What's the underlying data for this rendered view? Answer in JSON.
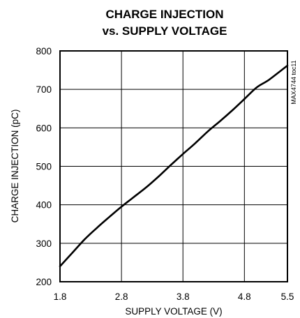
{
  "chart_data": {
    "type": "line",
    "title_line1": "CHARGE INJECTION",
    "title_line2": "vs. SUPPLY VOLTAGE",
    "xlabel": "SUPPLY VOLTAGE (V)",
    "ylabel": "CHARGE INJECTION (pC)",
    "part_code": "MAX4744 toc11",
    "xlim": [
      1.8,
      5.5
    ],
    "ylim": [
      200,
      800
    ],
    "x_ticks": [
      1.8,
      2.8,
      3.8,
      4.8,
      5.5
    ],
    "x_tick_labels": [
      "1.8",
      "2.8",
      "3.8",
      "4.8",
      "5.5"
    ],
    "y_ticks": [
      200,
      300,
      400,
      500,
      600,
      700,
      800
    ],
    "y_tick_labels": [
      "200",
      "300",
      "400",
      "500",
      "600",
      "700",
      "800"
    ],
    "grid": true,
    "series": [
      {
        "x": [
          1.8,
          2.0,
          2.2,
          2.4,
          2.6,
          2.8,
          3.0,
          3.2,
          3.4,
          3.6,
          3.8,
          4.0,
          4.2,
          4.4,
          4.6,
          4.8,
          5.0,
          5.2,
          5.5
        ],
        "y": [
          240,
          275,
          310,
          340,
          368,
          395,
          420,
          445,
          473,
          503,
          532,
          560,
          590,
          617,
          645,
          675,
          705,
          725,
          762
        ]
      }
    ]
  }
}
